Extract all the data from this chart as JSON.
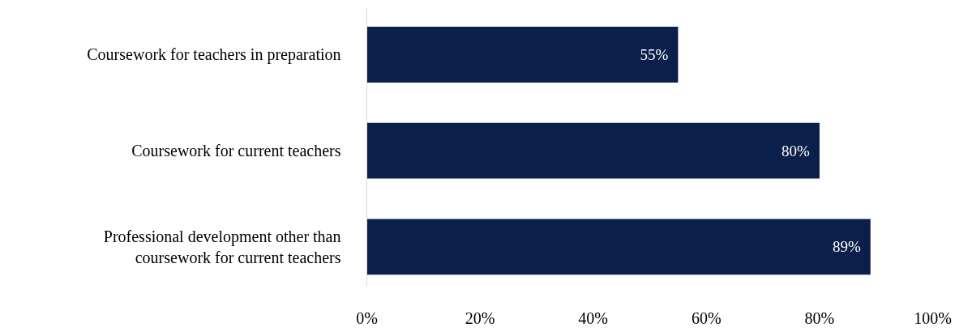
{
  "chart_data": {
    "type": "bar",
    "orientation": "horizontal",
    "categories": [
      "Coursework for teachers in preparation",
      "Coursework for current teachers",
      "Professional development other than coursework for current teachers"
    ],
    "values": [
      55,
      80,
      89
    ],
    "color": "#0b1f4b",
    "value_labels": [
      "55%",
      "80%",
      "89%"
    ],
    "xlim": [
      0,
      100
    ],
    "xticks": [
      {
        "value": 0,
        "label": "0%"
      },
      {
        "value": 20,
        "label": "20%"
      },
      {
        "value": 40,
        "label": "40%"
      },
      {
        "value": 60,
        "label": "60%"
      },
      {
        "value": 80,
        "label": "80%"
      },
      {
        "value": 100,
        "label": "100%"
      }
    ],
    "grid": false
  }
}
